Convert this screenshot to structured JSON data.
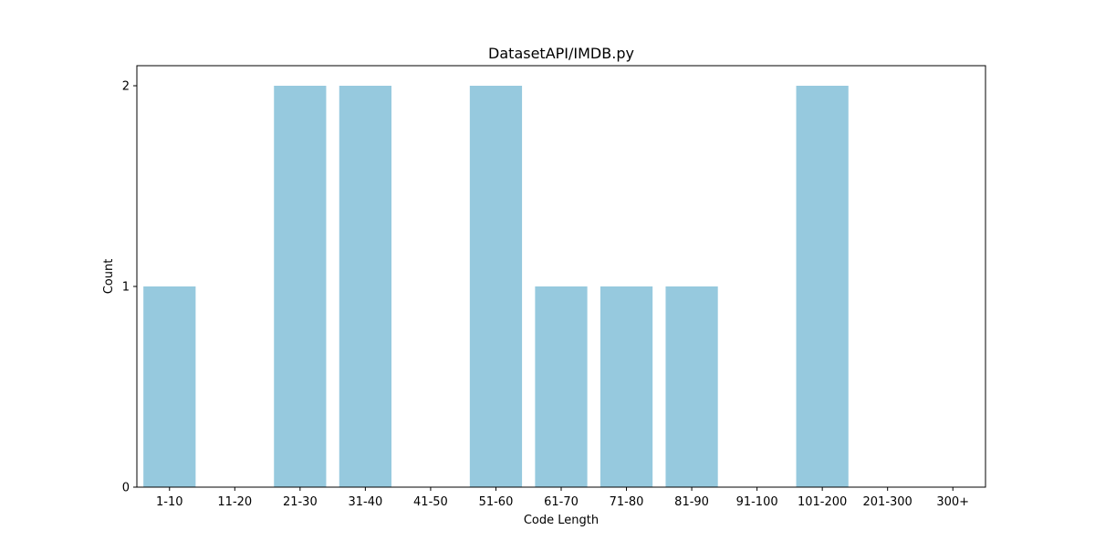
{
  "chart_data": {
    "type": "bar",
    "title": "DatasetAPI/IMDB.py",
    "xlabel": "Code Length",
    "ylabel": "Count",
    "categories": [
      "1-10",
      "11-20",
      "21-30",
      "31-40",
      "41-50",
      "51-60",
      "61-70",
      "71-80",
      "81-90",
      "91-100",
      "101-200",
      "201-300",
      "300+"
    ],
    "values": [
      1,
      0,
      2,
      2,
      0,
      2,
      1,
      1,
      1,
      0,
      2,
      0,
      0
    ],
    "yticks": [
      "0",
      "1",
      "2"
    ],
    "ylim": [
      0,
      2.1
    ],
    "grid": false,
    "bar_color": "#96c9de"
  }
}
